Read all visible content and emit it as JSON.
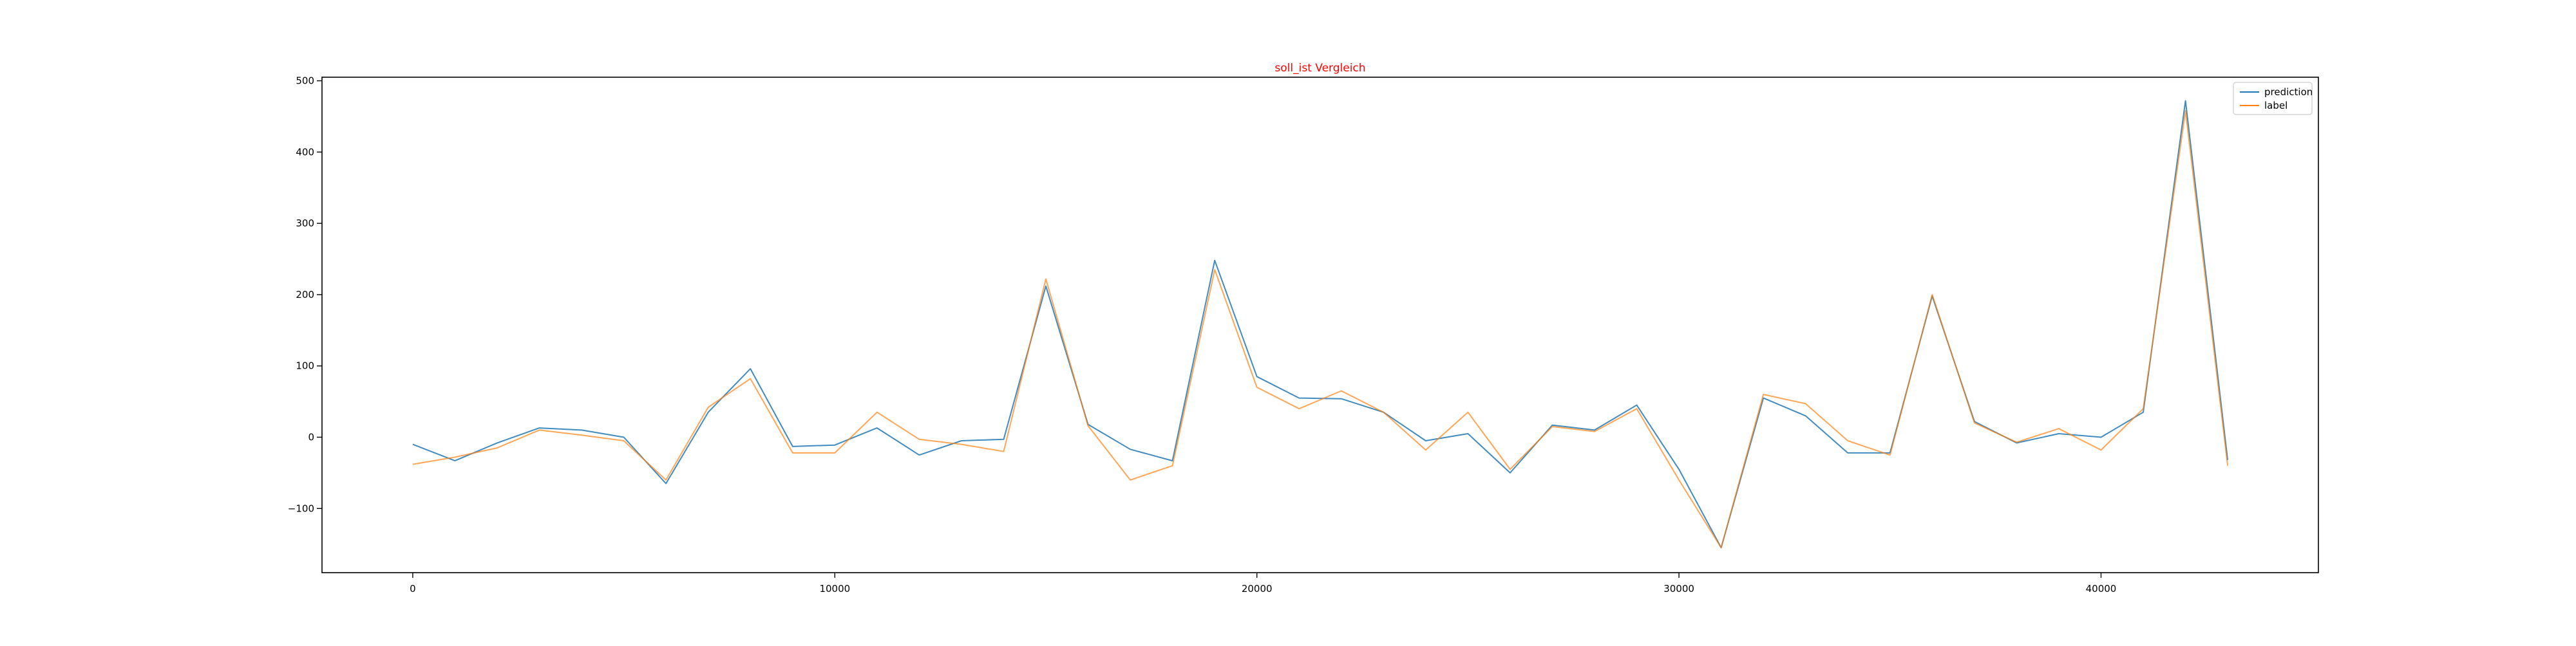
{
  "chart_data": {
    "type": "line",
    "title": "soll_ist Vergleich",
    "title_color": "#ff0000",
    "xlabel": "",
    "ylabel": "",
    "xlim": [
      -2150,
      45150
    ],
    "ylim": [
      -190,
      505
    ],
    "xticks": [
      0,
      10000,
      20000,
      30000,
      40000
    ],
    "xtick_labels": [
      "0",
      "10000",
      "20000",
      "30000",
      "40000"
    ],
    "yticks": [
      -100,
      0,
      100,
      200,
      300,
      400,
      500
    ],
    "ytick_labels": [
      "−100",
      "0",
      "100",
      "200",
      "300",
      "400",
      "500"
    ],
    "grid": false,
    "legend_position": "top-right",
    "x": [
      0,
      1000,
      2000,
      3000,
      4000,
      5000,
      6000,
      7000,
      8000,
      9000,
      10000,
      11000,
      12000,
      13000,
      14000,
      15000,
      16000,
      17000,
      18000,
      19000,
      20000,
      21000,
      22000,
      23000,
      24000,
      25000,
      26000,
      27000,
      28000,
      29000,
      30000,
      31000,
      32000,
      33000,
      34000,
      35000,
      36000,
      37000,
      38000,
      39000,
      40000,
      41000,
      42000,
      43000
    ],
    "series": [
      {
        "name": "prediction",
        "color": "#1f77b4",
        "values": [
          -10,
          -33,
          -8,
          13,
          10,
          0,
          -65,
          35,
          96,
          -13,
          -11,
          13,
          -25,
          -5,
          -3,
          212,
          18,
          -17,
          -33,
          248,
          85,
          55,
          54,
          35,
          -5,
          5,
          -50,
          17,
          10,
          45,
          -45,
          -155,
          55,
          30,
          -22,
          -22,
          198,
          22,
          -8,
          5,
          0,
          35,
          472,
          -32
        ]
      },
      {
        "name": "label",
        "color": "#ff7f0e",
        "values": [
          -38,
          -28,
          -15,
          10,
          3,
          -5,
          -60,
          42,
          82,
          -22,
          -22,
          35,
          -3,
          -10,
          -20,
          222,
          16,
          -60,
          -40,
          235,
          70,
          40,
          65,
          35,
          -18,
          35,
          -45,
          15,
          8,
          40,
          -60,
          -155,
          60,
          47,
          -5,
          -25,
          200,
          20,
          -7,
          12,
          -18,
          40,
          458,
          -40
        ]
      }
    ]
  }
}
